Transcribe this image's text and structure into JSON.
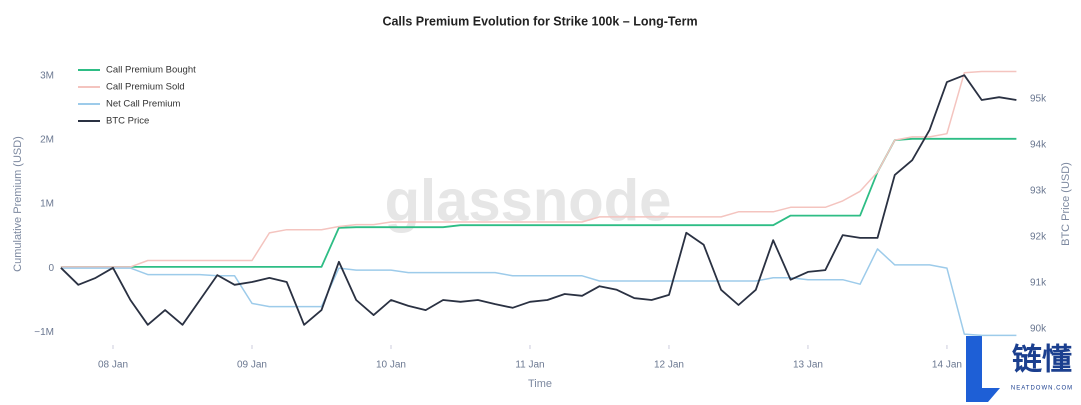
{
  "chart_data": {
    "type": "line",
    "title": "Calls Premium Evolution for Strike 100k – Long-Term",
    "x_label": "Time",
    "y_label": "Cumulative Premium (USD)",
    "y2_label": "BTC Price (USD)",
    "watermark": "glassnode",
    "logo_text": "链懂",
    "logo_subtext": "NEATDOWN.COM",
    "legend": "top-left",
    "grid": false,
    "xlim": [
      7.633,
      14.54
    ],
    "xticks": [
      {
        "value": 8,
        "label": "08 Jan"
      },
      {
        "value": 9,
        "label": "09 Jan"
      },
      {
        "value": 10,
        "label": "10 Jan"
      },
      {
        "value": 11,
        "label": "11 Jan"
      },
      {
        "value": 12,
        "label": "12 Jan"
      },
      {
        "value": 13,
        "label": "13 Jan"
      },
      {
        "value": 14,
        "label": "14 Jan"
      }
    ],
    "ylim": [
      -1200000,
      3250000
    ],
    "yticks": [
      {
        "value": -1000000,
        "label": "−1M"
      },
      0,
      {
        "value": 1000000,
        "label": "1M"
      },
      {
        "value": 2000000,
        "label": "2M"
      },
      {
        "value": 3000000,
        "label": "3M"
      }
    ],
    "y2lim": [
      89650,
      95850
    ],
    "y2ticks": [
      {
        "value": 90000,
        "label": "90k"
      },
      {
        "value": 91000,
        "label": "91k"
      },
      {
        "value": 92000,
        "label": "92k"
      },
      {
        "value": 93000,
        "label": "93k"
      },
      {
        "value": 94000,
        "label": "94k"
      },
      {
        "value": 95000,
        "label": "95k"
      }
    ],
    "x": [
      7.625,
      7.75,
      7.875,
      8,
      8.125,
      8.25,
      8.375,
      8.5,
      8.625,
      8.75,
      8.875,
      9,
      9.125,
      9.25,
      9.375,
      9.5,
      9.625,
      9.75,
      9.875,
      10,
      10.125,
      10.25,
      10.375,
      10.5,
      10.625,
      10.75,
      10.875,
      11,
      11.125,
      11.25,
      11.375,
      11.5,
      11.625,
      11.75,
      11.875,
      12,
      12.125,
      12.25,
      12.375,
      12.5,
      12.625,
      12.75,
      12.875,
      13,
      13.125,
      13.25,
      13.375,
      13.5,
      13.625,
      13.75,
      13.875,
      14,
      14.125,
      14.25,
      14.375,
      14.5
    ],
    "series": [
      {
        "name": "Call Premium Bought",
        "color": "#2ebd85",
        "width": 1.8,
        "values": [
          20000,
          20000,
          20000,
          20000,
          20000,
          20000,
          20000,
          20000,
          20000,
          20000,
          20000,
          20000,
          20000,
          20000,
          20000,
          20000,
          630000,
          640000,
          640000,
          640000,
          640000,
          640000,
          640000,
          670000,
          670000,
          670000,
          670000,
          670000,
          670000,
          670000,
          670000,
          670000,
          670000,
          670000,
          670000,
          670000,
          670000,
          670000,
          670000,
          670000,
          670000,
          670000,
          820000,
          820000,
          820000,
          820000,
          820000,
          1500000,
          2000000,
          2020000,
          2020000,
          2020000,
          2020000,
          2020000,
          2020000,
          2020000
        ]
      },
      {
        "name": "Call Premium Sold",
        "color": "#f4c4bf",
        "width": 1.5,
        "values": [
          20000,
          20000,
          20000,
          20000,
          20000,
          120000,
          120000,
          120000,
          120000,
          120000,
          120000,
          120000,
          550000,
          600000,
          600000,
          600000,
          650000,
          680000,
          680000,
          720000,
          720000,
          720000,
          720000,
          720000,
          720000,
          720000,
          720000,
          720000,
          720000,
          720000,
          720000,
          800000,
          800000,
          800000,
          800000,
          800000,
          800000,
          800000,
          800000,
          880000,
          880000,
          880000,
          950000,
          950000,
          950000,
          1050000,
          1200000,
          1500000,
          2000000,
          2050000,
          2050000,
          2100000,
          3050000,
          3070000,
          3070000,
          3070000
        ]
      },
      {
        "name": "Net Call Premium",
        "color": "#9dcbea",
        "width": 1.5,
        "values": [
          0,
          0,
          0,
          0,
          0,
          -100000,
          -100000,
          -100000,
          -100000,
          -120000,
          -120000,
          -550000,
          -600000,
          -600000,
          -600000,
          -600000,
          0,
          -30000,
          -30000,
          -30000,
          -70000,
          -70000,
          -70000,
          -70000,
          -70000,
          -70000,
          -120000,
          -120000,
          -120000,
          -120000,
          -120000,
          -200000,
          -200000,
          -200000,
          -200000,
          -200000,
          -200000,
          -200000,
          -200000,
          -200000,
          -200000,
          -150000,
          -150000,
          -180000,
          -180000,
          -180000,
          -250000,
          300000,
          50000,
          50000,
          50000,
          0,
          -1030000,
          -1050000,
          -1050000,
          -1050000
        ]
      },
      {
        "name": "BTC Price",
        "color": "#2a3142",
        "width": 1.8,
        "axis": "y2",
        "values": [
          91330,
          90960,
          91110,
          91330,
          90630,
          90090,
          90410,
          90090,
          90630,
          91170,
          90960,
          91020,
          91110,
          91020,
          90090,
          90410,
          91460,
          90630,
          90300,
          90630,
          90500,
          90410,
          90630,
          90590,
          90630,
          90540,
          90460,
          90590,
          90630,
          90760,
          90720,
          90930,
          90850,
          90670,
          90630,
          90740,
          92090,
          91830,
          90850,
          90520,
          90850,
          91930,
          91070,
          91240,
          91280,
          92040,
          91980,
          91980,
          93350,
          93670,
          94330,
          95370,
          95520,
          94980,
          95040,
          94980
        ]
      }
    ]
  }
}
